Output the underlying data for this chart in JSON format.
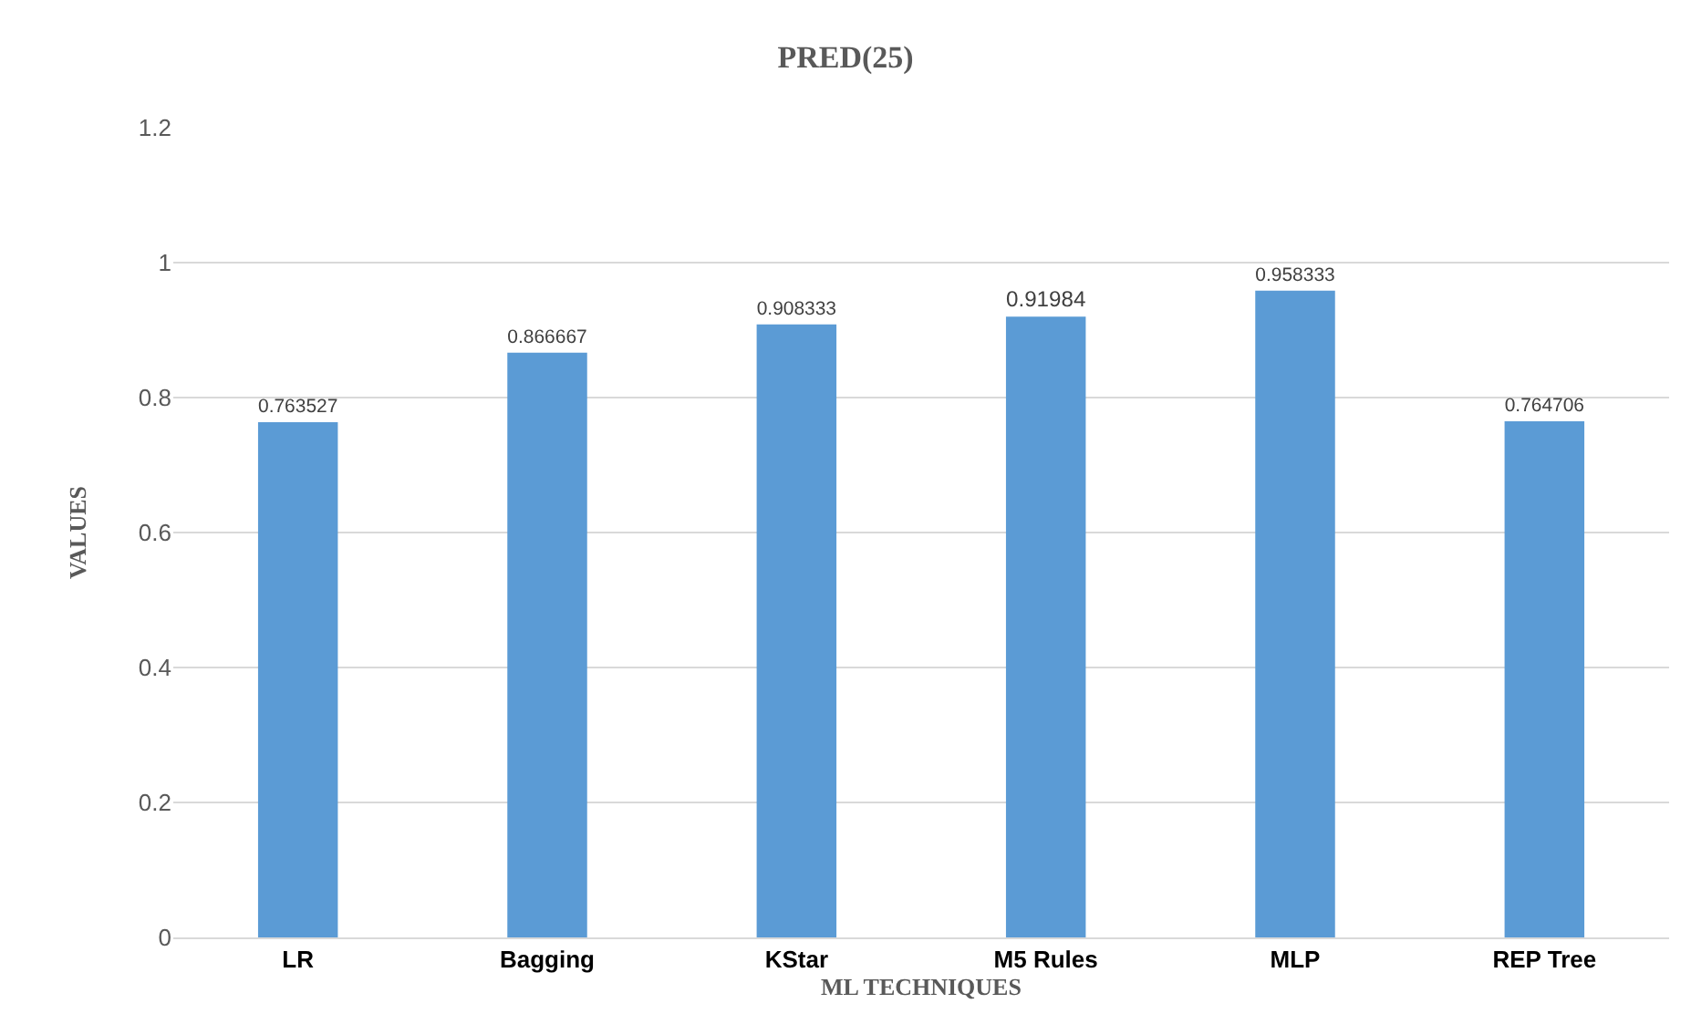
{
  "chart_data": {
    "type": "bar",
    "title": "PRED(25)",
    "xlabel": "ML TECHNIQUES",
    "ylabel": "VALUES",
    "categories": [
      "LR",
      "Bagging",
      "KStar",
      "M5 Rules",
      "MLP",
      "REP Tree"
    ],
    "values": [
      0.763527,
      0.866667,
      0.908333,
      0.91984,
      0.958333,
      0.764706
    ],
    "color": "#5b9bd5",
    "ylim": [
      0,
      1.2
    ],
    "yticks": [
      0,
      0.2,
      0.4,
      0.6,
      0.8,
      1,
      1.2
    ],
    "grid": "y",
    "data_labels": true
  }
}
